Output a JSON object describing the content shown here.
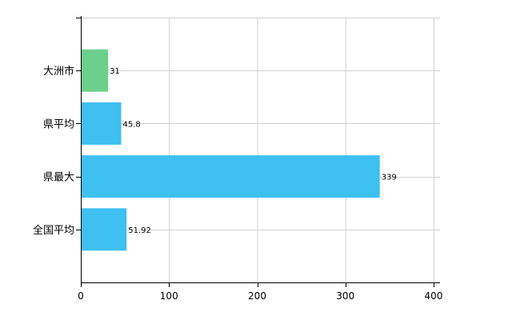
{
  "chart_data": {
    "type": "bar",
    "orientation": "horizontal",
    "title": "",
    "xlabel": "",
    "ylabel": "",
    "categories": [
      "大洲市",
      "県平均",
      "県最大",
      "全国平均"
    ],
    "values": [
      31,
      45.8,
      339,
      51.92
    ],
    "data_labels": [
      "31",
      "45.8",
      "339",
      "51.92"
    ],
    "bar_colors": [
      "#6cd08c",
      "#3ec0f0",
      "#3ec0f0",
      "#3ec0f0"
    ],
    "xlim": [
      0,
      400
    ],
    "x_ticks": [
      0,
      100,
      200,
      300,
      400
    ],
    "x_tick_labels": [
      "0",
      "100",
      "200",
      "300",
      "400"
    ],
    "grid": true,
    "grid_color": "#d3d3d3",
    "legend": "none"
  }
}
